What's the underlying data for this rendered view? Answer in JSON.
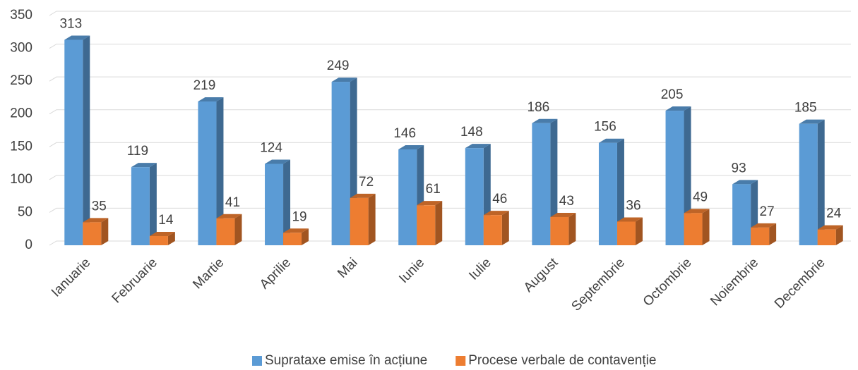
{
  "chart_data": {
    "type": "bar3d",
    "categories": [
      "Ianuarie",
      "Februarie",
      "Martie",
      "Aprilie",
      "Mai",
      "Iunie",
      "Iulie",
      "August",
      "Septembrie",
      "Octombrie",
      "Noiembrie",
      "Decembrie"
    ],
    "series": [
      {
        "name": "Suprataxe emise în acțiune",
        "color": "#5b9bd5",
        "values": [
          313,
          119,
          219,
          124,
          249,
          146,
          148,
          186,
          156,
          205,
          93,
          185
        ]
      },
      {
        "name": "Procese verbale de contavenție",
        "color": "#ed7d31",
        "values": [
          35,
          14,
          41,
          19,
          72,
          61,
          46,
          43,
          36,
          49,
          27,
          24
        ]
      }
    ],
    "ylim": [
      0,
      350
    ],
    "yticks": [
      0,
      50,
      100,
      150,
      200,
      250,
      300,
      350
    ],
    "grid": true,
    "legend": "bottom"
  }
}
